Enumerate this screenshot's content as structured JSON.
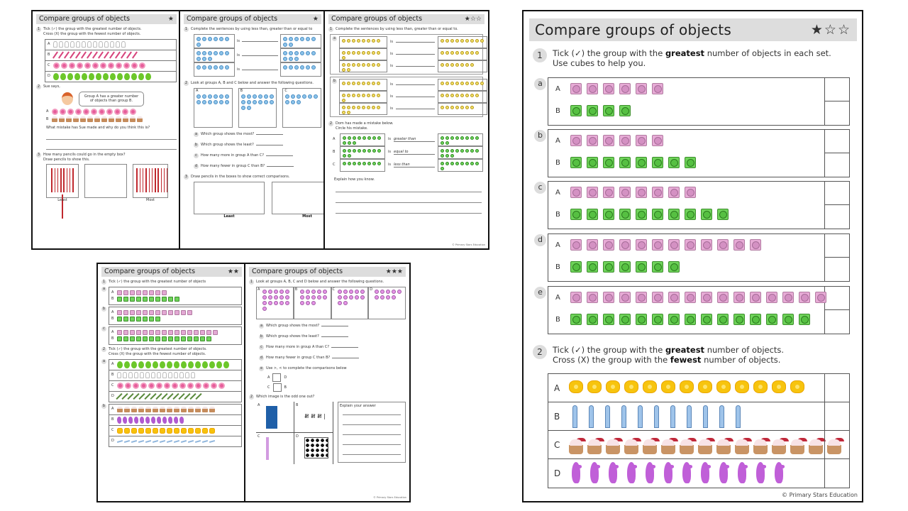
{
  "title": "Compare groups of objects",
  "footer": "© Primary Stars Education",
  "colors": {
    "title_bar": "#dddddd",
    "pink_cube": "#e7abd6",
    "green_cube": "#6fd35a"
  },
  "big_sheet": {
    "stars": "★☆☆",
    "q1": {
      "number": "1",
      "text_pre": "Tick (✓) the group with the ",
      "bold": "greatest",
      "text_post": " number of objects in each set.",
      "line2": "Use cubes to help you.",
      "sets": [
        {
          "label": "a",
          "A": 6,
          "B": 4
        },
        {
          "label": "b",
          "A": 6,
          "B": 8
        },
        {
          "label": "c",
          "A": 8,
          "B": 10
        },
        {
          "label": "d",
          "A": 12,
          "B": 7
        },
        {
          "label": "e",
          "A": 16,
          "B": 15
        }
      ],
      "row_labels": [
        "A",
        "B"
      ]
    },
    "q2": {
      "number": "2",
      "l1_pre": "Tick (✓) the group with the ",
      "l1_bold": "greatest",
      "l1_post": " number of objects.",
      "l2_pre": "Cross (X) the group with the ",
      "l2_bold": "fewest",
      "l2_post": " number of objects.",
      "rows": [
        {
          "label": "A",
          "object": "flower-icon",
          "count": 13
        },
        {
          "label": "B",
          "object": "pencil-icon",
          "count": 11
        },
        {
          "label": "C",
          "object": "cupcake-icon",
          "count": 15
        },
        {
          "label": "D",
          "object": "seahorse-icon",
          "count": 12
        }
      ]
    }
  },
  "sheet1": {
    "stars": "★",
    "q1_l1": "Tick (✓) the group with the greatest number of objects.",
    "q1_l2": "Cross (X) the group with the fewest number of objects.",
    "q1_rows": [
      {
        "label": "A",
        "object": "bunny",
        "count": 13
      },
      {
        "label": "B",
        "object": "ppencil",
        "count": 15
      },
      {
        "label": "C",
        "object": "pflower",
        "count": 12
      },
      {
        "label": "D",
        "object": "balloon",
        "count": 14
      }
    ],
    "q2_text": "Sue says,",
    "speech": "Group A has a greater number of objects than group B.",
    "q2_rows": [
      {
        "label": "A",
        "object": "pflower",
        "count": 11
      },
      {
        "label": "B",
        "object": "cupcake",
        "count": 13
      }
    ],
    "q2_question": "What mistake has Sue made and why do you think this is?",
    "q3_l1": "How many pencils could go in the empty box?",
    "q3_l2": "Draw pencils to show this.",
    "least": "Least",
    "most": "Most"
  },
  "sheet2": {
    "stars": "★",
    "q1": "Complete the sentences by using less than, greater than or equal to",
    "is": "is",
    "q2": "Look at groups A, B and C below and answer the following questions.",
    "groups": [
      "A",
      "B",
      "C"
    ],
    "questions": [
      {
        "label": "a",
        "text": "Which group shows the most?"
      },
      {
        "label": "b",
        "text": "Which group shows the least?"
      },
      {
        "label": "c",
        "text": "How many more in group A than C?"
      },
      {
        "label": "d",
        "text": "How many fewer in group C than B?"
      }
    ],
    "q3": "Draw pencils in the boxes to show correct comparisons.",
    "least": "Least",
    "most": "Most"
  },
  "sheet3": {
    "stars": "★☆☆",
    "q1": "Complete the sentences by using less than, greater than or equal to.",
    "set_labels": [
      "a",
      "b"
    ],
    "is": "is",
    "q2_l1": "Dom has made a mistake below.",
    "q2_l2": "Circle his mistake.",
    "q2_rows": [
      {
        "label": "A",
        "answer": "greater than"
      },
      {
        "label": "B",
        "answer": "equal to"
      },
      {
        "label": "C",
        "answer": "less than"
      }
    ],
    "explain": "Explain how you know."
  },
  "sheet4": {
    "stars": "★★",
    "q1": "Tick (✓) the group with the greatest number of objects",
    "q1_sets": [
      {
        "label": "a",
        "A": 8,
        "B": 10
      },
      {
        "label": "b",
        "A": 12,
        "B": 7
      },
      {
        "label": "c",
        "A": 16,
        "B": 15
      }
    ],
    "q2_l1": "Tick (✓) the group with the greatest number of objects.",
    "q2_l2": "Cross (X) the group with the fewest number of objects.",
    "q2_sets": [
      {
        "label": "a",
        "rows": [
          {
            "label": "A",
            "object": "balloon",
            "count": 16
          },
          {
            "label": "B",
            "object": "bunny",
            "count": 14
          },
          {
            "label": "C",
            "object": "pflower",
            "count": 14
          },
          {
            "label": "D",
            "object": "stick",
            "count": 15
          }
        ]
      },
      {
        "label": "b",
        "rows": [
          {
            "label": "A",
            "object": "cupcake",
            "count": 14
          },
          {
            "label": "B",
            "object": "seahorse",
            "count": 12
          },
          {
            "label": "C",
            "object": "yflower",
            "count": 14
          },
          {
            "label": "D",
            "object": "bpencil",
            "count": 14
          }
        ]
      }
    ]
  },
  "sheet5": {
    "stars": "★★★",
    "q1": "Look at groups A, B, C and D below and answer the following questions.",
    "groups": [
      {
        "label": "A",
        "count": 16
      },
      {
        "label": "B",
        "count": 13
      },
      {
        "label": "C",
        "count": 12
      },
      {
        "label": "D",
        "count": 9
      }
    ],
    "questions": [
      {
        "label": "a",
        "text": "Which group shows the most?"
      },
      {
        "label": "b",
        "text": "Which group shows the least?"
      },
      {
        "label": "c",
        "text": "How many more in group A than C?"
      },
      {
        "label": "d",
        "text": "How many fewer in group C than B?"
      }
    ],
    "e_text": "Use >, < to complete the comparisons below",
    "comparisons": [
      [
        "A",
        "D"
      ],
      [
        "C",
        "B"
      ]
    ],
    "q2": "Which image is the odd one out?",
    "images": [
      "A",
      "B",
      "C",
      "D"
    ],
    "explain": "Explain your answer"
  }
}
